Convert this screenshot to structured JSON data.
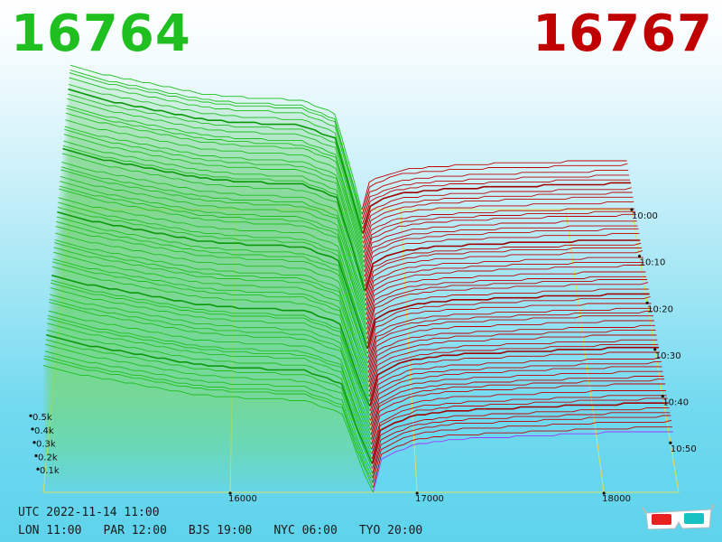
{
  "header": {
    "bid": "16764",
    "ask": "16767"
  },
  "footer": {
    "utc": "UTC 2022-11-14 11:00",
    "cities": [
      "LON 11:00",
      "PAR 12:00",
      "BJS 19:00",
      "NYC 06:00",
      "TYO 20:00"
    ]
  },
  "colors": {
    "bid": "#1fbf1f",
    "ask": "#c00000",
    "grid": "#e0e060",
    "highlight": "#9b3bff"
  },
  "chart_data": {
    "type": "area",
    "view": "3d-depth-chart",
    "x_ticks": [
      "16000",
      "17000",
      "18000"
    ],
    "x_tick_values": [
      16000,
      17000,
      18000
    ],
    "xlim": [
      15000,
      18400
    ],
    "mid_price": 16765,
    "y_ticks": [
      "0.1k",
      "0.2k",
      "0.3k",
      "0.4k",
      "0.5k"
    ],
    "y_tick_values": [
      100,
      200,
      300,
      400,
      500
    ],
    "ylim": [
      0,
      500
    ],
    "time_ticks": [
      "10:00",
      "10:10",
      "10:20",
      "10:30",
      "10:40",
      "10:50"
    ],
    "snapshot_count": 60,
    "bids": {
      "levels": [
        15000,
        15200,
        15400,
        15600,
        15800,
        16000,
        16200,
        16400,
        16600,
        16700,
        16764
      ],
      "depth": [
        390,
        360,
        340,
        320,
        300,
        290,
        285,
        280,
        240,
        80,
        0
      ],
      "depth_oldest": [
        450,
        420,
        400,
        380,
        360,
        350,
        345,
        340,
        300,
        120,
        0
      ]
    },
    "asks": {
      "levels": [
        16767,
        16800,
        16900,
        17000,
        17200,
        17400,
        17600,
        17800,
        18000,
        18400
      ],
      "depth": [
        0,
        100,
        130,
        150,
        165,
        170,
        175,
        180,
        185,
        190
      ],
      "depth_oldest": [
        0,
        80,
        105,
        120,
        130,
        135,
        140,
        142,
        145,
        150
      ]
    }
  }
}
